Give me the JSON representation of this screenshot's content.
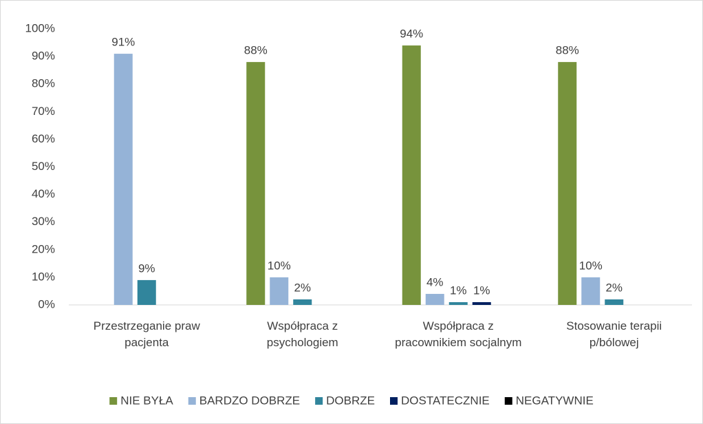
{
  "chart_data": {
    "type": "bar",
    "categories": [
      "Przestrzeganie praw pacjenta",
      "Współpraca z psychologiem",
      "Współpraca z pracownikiem socjalnym",
      "Stosowanie terapii p/bólowej"
    ],
    "series": [
      {
        "name": "NIE BYŁA",
        "color": "#77933c",
        "values": [
          0,
          88,
          94,
          88
        ],
        "value_labels": [
          null,
          "88%",
          "94%",
          "88%"
        ]
      },
      {
        "name": "BARDZO DOBRZE",
        "color": "#95b3d7",
        "values": [
          91,
          10,
          4,
          10
        ],
        "value_labels": [
          "91%",
          "10%",
          "4%",
          "10%"
        ]
      },
      {
        "name": "DOBRZE",
        "color": "#31859c",
        "values": [
          9,
          2,
          1,
          2
        ],
        "value_labels": [
          "9%",
          "2%",
          "1%",
          "2%"
        ]
      },
      {
        "name": "DOSTATECZNIE",
        "color": "#002060",
        "values": [
          0,
          0,
          1,
          0
        ],
        "value_labels": [
          null,
          null,
          "1%",
          null
        ]
      },
      {
        "name": "NEGATYWNIE",
        "color": "#000000",
        "values": [
          0,
          0,
          0,
          0
        ],
        "value_labels": [
          null,
          null,
          null,
          null
        ]
      }
    ],
    "ylim": [
      0,
      100
    ],
    "yticks": [
      {
        "value": 0,
        "label": "0%"
      },
      {
        "value": 10,
        "label": "10%"
      },
      {
        "value": 20,
        "label": "20%"
      },
      {
        "value": 30,
        "label": "30%"
      },
      {
        "value": 40,
        "label": "40%"
      },
      {
        "value": 50,
        "label": "50%"
      },
      {
        "value": 60,
        "label": "60%"
      },
      {
        "value": 70,
        "label": "70%"
      },
      {
        "value": 80,
        "label": "80%"
      },
      {
        "value": 90,
        "label": "90%"
      },
      {
        "value": 100,
        "label": "100%"
      }
    ],
    "grid": false,
    "legend": "bottom"
  }
}
